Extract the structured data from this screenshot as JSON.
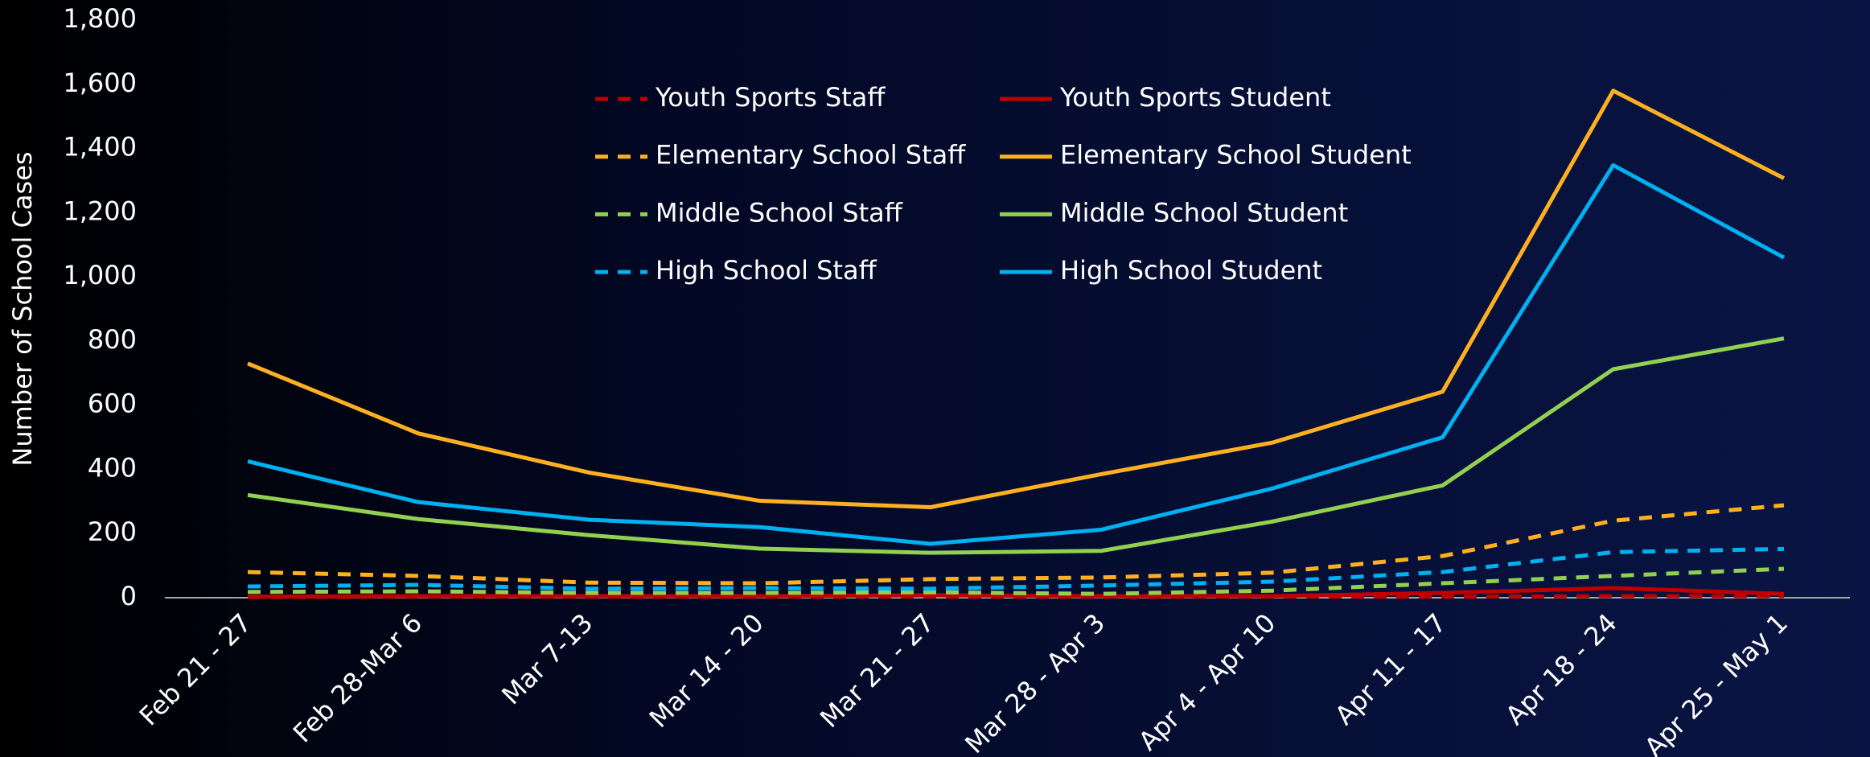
{
  "chart_data": {
    "type": "line",
    "y_label": "Number of School Cases",
    "categories": [
      "Feb 21 - 27",
      "Feb 28-Mar 6",
      "Mar 7-13",
      "Mar 14 - 20",
      "Mar 21 - 27",
      "Mar 28 - Apr 3",
      "Apr 4 - Apr 10",
      "Apr 11 - 17",
      "Apr 18 - 24",
      "Apr 25 - May 1"
    ],
    "ylim": [
      0,
      1800
    ],
    "yticks": [
      0,
      200,
      400,
      600,
      800,
      {
        "value": 1000,
        "label": "1,000"
      },
      {
        "value": 1200,
        "label": "1,200"
      },
      {
        "value": 1400,
        "label": "1,400"
      },
      {
        "value": 1600,
        "label": "1,600"
      },
      {
        "value": 1800,
        "label": "1,800"
      }
    ],
    "series": [
      {
        "name": "Youth Sports Staff",
        "color": "#c00000",
        "style": "dashed",
        "values": [
          2,
          3,
          3,
          3,
          3,
          3,
          3,
          3,
          5,
          5
        ]
      },
      {
        "name": "Youth Sports Student",
        "color": "#c00000",
        "style": "solid",
        "values": [
          3,
          5,
          5,
          5,
          8,
          5,
          5,
          15,
          30,
          12
        ]
      },
      {
        "name": "Elementary School Staff",
        "color": "#ffb020",
        "style": "dashed",
        "values": [
          80,
          68,
          47,
          45,
          58,
          63,
          78,
          130,
          240,
          288
        ]
      },
      {
        "name": "Elementary School Student",
        "color": "#ffb020",
        "style": "solid",
        "values": [
          730,
          512,
          390,
          302,
          282,
          385,
          483,
          642,
          1580,
          1307
        ]
      },
      {
        "name": "Middle School Staff",
        "color": "#92d050",
        "style": "dashed",
        "values": [
          18,
          20,
          15,
          15,
          17,
          12,
          22,
          45,
          68,
          90
        ]
      },
      {
        "name": "Middle School Student",
        "color": "#92d050",
        "style": "solid",
        "values": [
          320,
          245,
          195,
          153,
          140,
          146,
          237,
          350,
          712,
          808
        ]
      },
      {
        "name": "High School Staff",
        "color": "#00b0f0",
        "style": "dashed",
        "values": [
          35,
          40,
          28,
          30,
          28,
          38,
          50,
          80,
          142,
          152
        ]
      },
      {
        "name": "High School Student",
        "color": "#00b0f0",
        "style": "solid",
        "values": [
          425,
          298,
          243,
          220,
          168,
          212,
          340,
          500,
          1348,
          1060
        ]
      }
    ]
  }
}
